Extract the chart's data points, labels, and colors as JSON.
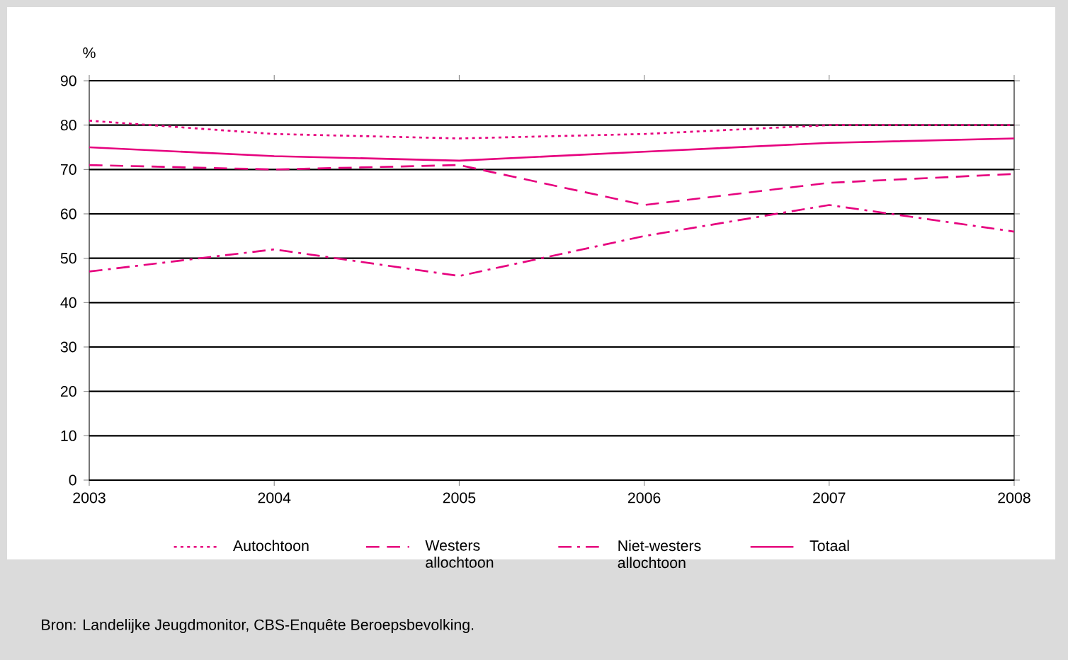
{
  "chart_data": {
    "type": "line",
    "ylabel": "%",
    "x": [
      2003,
      2004,
      2005,
      2006,
      2007,
      2008
    ],
    "series": [
      {
        "name": "Autochtoon",
        "color": "#e6007e",
        "line_style": "dotted",
        "values": [
          81,
          78,
          77,
          78,
          80,
          80
        ]
      },
      {
        "name": "Westers allochtoon",
        "color": "#e6007e",
        "line_style": "dashed",
        "values": [
          71,
          70,
          71,
          62,
          67,
          69
        ]
      },
      {
        "name": "Niet-westers allochtoon",
        "color": "#e6007e",
        "line_style": "dashdot",
        "values": [
          47,
          52,
          46,
          55,
          62,
          56
        ]
      },
      {
        "name": "Totaal",
        "color": "#e6007e",
        "line_style": "solid",
        "values": [
          75,
          73,
          72,
          74,
          76,
          77
        ]
      }
    ],
    "xlim": [
      2003,
      2008
    ],
    "ylim": [
      0,
      90
    ],
    "xticks": [
      2003,
      2004,
      2005,
      2006,
      2007,
      2008
    ],
    "yticks": [
      0,
      10,
      20,
      30,
      40,
      50,
      60,
      70,
      80,
      90
    ],
    "grid": "y",
    "legend": "bottom",
    "marker": "none",
    "annotations": [
      "Bron: Landelijke Jeugdmonitor, CBS-Enquête Beroepsbevolking."
    ]
  }
}
